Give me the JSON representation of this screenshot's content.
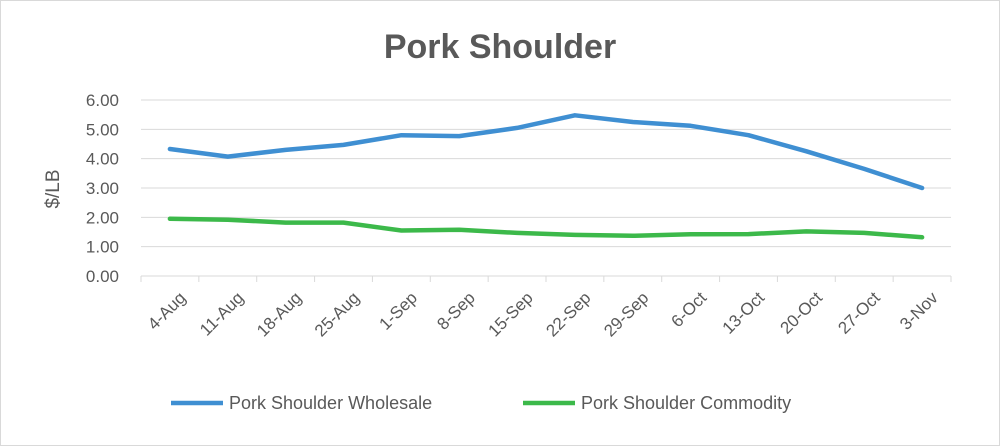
{
  "chart_data": {
    "type": "line",
    "title": "Pork Shoulder",
    "xlabel": "",
    "ylabel": "$/LB",
    "categories": [
      "4-Aug",
      "11-Aug",
      "18-Aug",
      "25-Aug",
      "1-Sep",
      "8-Sep",
      "15-Sep",
      "22-Sep",
      "29-Sep",
      "6-Oct",
      "13-Oct",
      "20-Oct",
      "27-Oct",
      "3-Nov"
    ],
    "ylim": [
      0,
      6
    ],
    "yticks": [
      "0.00",
      "1.00",
      "2.00",
      "3.00",
      "4.00",
      "5.00",
      "6.00"
    ],
    "grid": true,
    "legend_position": "bottom",
    "series": [
      {
        "name": "Pork Shoulder Wholesale",
        "color": "#3f8fd2",
        "values": [
          4.33,
          4.07,
          4.3,
          4.47,
          4.8,
          4.77,
          5.05,
          5.48,
          5.25,
          5.12,
          4.8,
          4.25,
          3.65,
          3.0
        ]
      },
      {
        "name": "Pork Shoulder Commodity",
        "color": "#3cb94a",
        "values": [
          1.95,
          1.92,
          1.82,
          1.82,
          1.55,
          1.58,
          1.47,
          1.4,
          1.37,
          1.42,
          1.43,
          1.52,
          1.47,
          1.32
        ]
      }
    ]
  }
}
